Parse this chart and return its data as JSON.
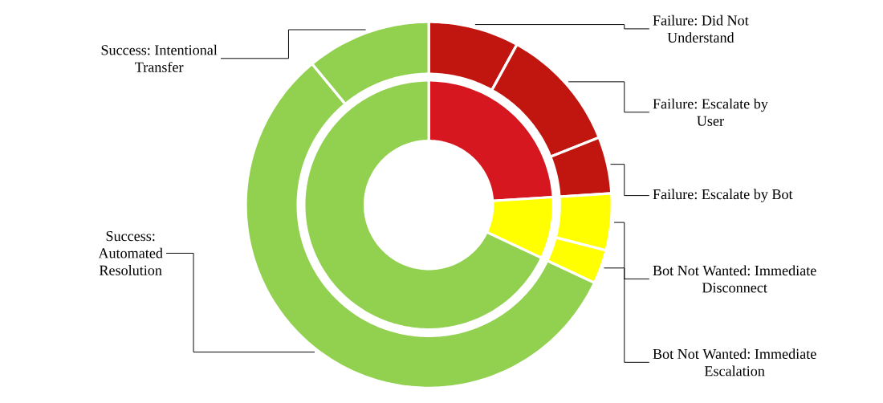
{
  "chart_data": [
    {
      "type": "donut",
      "categories": [
        null,
        null,
        null
      ],
      "values": [
        24,
        8,
        68
      ],
      "colors": [
        "#d7171f",
        "#ffff00",
        "#92d050"
      ]
    },
    {
      "type": "donut",
      "categories": [
        "Failure: Did Not Understand",
        "Failure: Escalate by User",
        "Failure: Escalate by Bot",
        "Bot Not Wanted: Immediate Disconnect",
        "Bot Not Wanted: Immediate Escalation",
        "Success: Automated Resolution",
        "Success: Intentional Transfer"
      ],
      "values": [
        8,
        11,
        5,
        5,
        3,
        57,
        11
      ],
      "colors": [
        "#c0160f",
        "#c0160f",
        "#c0160f",
        "#ffff00",
        "#ffff00",
        "#92d050",
        "#92d050"
      ]
    }
  ]
}
